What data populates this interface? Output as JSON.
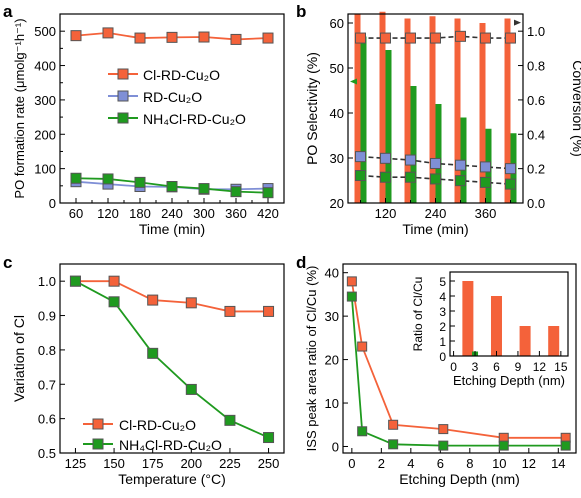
{
  "colors": {
    "orange": "#f4623a",
    "blue": "#7f8fd6",
    "green": "#1f9a1f",
    "dark": "#333333"
  },
  "chart_data": [
    {
      "panel": "a",
      "type": "line",
      "xlabel": "Time (min)",
      "ylabel": "PO formation rate (μmolg⁻¹h⁻¹)",
      "x": [
        60,
        120,
        180,
        240,
        300,
        360,
        420
      ],
      "xlim": [
        30,
        450
      ],
      "ylim": [
        0,
        550
      ],
      "xticks": [
        60,
        120,
        180,
        240,
        300,
        360,
        420
      ],
      "yticks": [
        0,
        100,
        200,
        300,
        400,
        500
      ],
      "legend": "middle-left",
      "series": [
        {
          "name": "Cl-RD-Cu₂O",
          "color": "#f4623a",
          "values": [
            487,
            495,
            480,
            482,
            483,
            476,
            480
          ]
        },
        {
          "name": "RD-Cu₂O",
          "color": "#7f8fd6",
          "values": [
            62,
            55,
            48,
            47,
            40,
            40,
            42
          ]
        },
        {
          "name": "NH₄Cl-RD-Cu₂O",
          "color": "#1f9a1f",
          "values": [
            72,
            70,
            60,
            48,
            42,
            33,
            30
          ]
        }
      ]
    },
    {
      "panel": "b",
      "type": "bar",
      "xlabel": "Time (min)",
      "ylabel_left": "PO Selectivity (%)",
      "ylabel_right": "Conversion (%)",
      "xlim": [
        30,
        450
      ],
      "ylim_left": [
        20,
        62
      ],
      "ylim_right": [
        0,
        1.1
      ],
      "xticks": [
        120,
        240,
        360
      ],
      "yticks_left": [
        20,
        30,
        40,
        50,
        60
      ],
      "yticks_right": [
        0.0,
        0.2,
        0.4,
        0.6,
        0.8,
        1.0
      ],
      "x": [
        60,
        120,
        180,
        240,
        300,
        360,
        420
      ],
      "bar_series": [
        {
          "color": "#f4623a",
          "values": [
            62,
            62.5,
            61,
            61.5,
            61,
            60,
            61
          ]
        },
        {
          "color": "#1f9a1f",
          "values": [
            57,
            54,
            46,
            42,
            39,
            36.5,
            35.5
          ]
        }
      ],
      "line_series": [
        {
          "color": "#f4623a",
          "values": [
            0.96,
            0.96,
            0.96,
            0.96,
            0.97,
            0.96,
            0.96
          ]
        },
        {
          "color": "#7f8fd6",
          "values": [
            0.27,
            0.26,
            0.25,
            0.23,
            0.22,
            0.21,
            0.2
          ]
        },
        {
          "color": "#1f9a1f",
          "values": [
            0.16,
            0.15,
            0.15,
            0.14,
            0.13,
            0.12,
            0.11
          ]
        }
      ]
    },
    {
      "panel": "c",
      "type": "line",
      "xlabel": "Temperature (°C)",
      "ylabel": "Variation of Cl",
      "x": [
        125,
        150,
        175,
        200,
        225,
        250
      ],
      "xlim": [
        115,
        260
      ],
      "ylim": [
        0.5,
        1.05
      ],
      "xticks": [
        125,
        150,
        175,
        200,
        225,
        250
      ],
      "yticks": [
        0.5,
        0.6,
        0.7,
        0.8,
        0.9,
        1.0
      ],
      "legend": "bottom-left",
      "series": [
        {
          "name": "Cl-RD-Cu₂O",
          "color": "#f4623a",
          "values": [
            1.0,
            1.0,
            0.945,
            0.937,
            0.912,
            0.912
          ]
        },
        {
          "name": "NH₄Cl-RD-Cu₂O",
          "color": "#1f9a1f",
          "values": [
            1.0,
            0.94,
            0.79,
            0.685,
            0.595,
            0.545
          ]
        }
      ]
    },
    {
      "panel": "d",
      "type": "line",
      "xlabel": "Etching Depth (nm)",
      "ylabel": "ISS peak area ratio of Cl/Cu (%)",
      "xlim": [
        -0.6,
        15.2
      ],
      "ylim": [
        -1.5,
        42
      ],
      "xticks": [
        0,
        2,
        4,
        6,
        8,
        10,
        12,
        14
      ],
      "yticks": [
        0,
        10,
        20,
        30,
        40
      ],
      "series": [
        {
          "color": "#f4623a",
          "x": [
            0,
            0.7,
            2.8,
            6.2,
            10.3,
            14.5
          ],
          "values": [
            38,
            23,
            5,
            4,
            2,
            2
          ]
        },
        {
          "color": "#1f9a1f",
          "x": [
            0,
            0.7,
            2.8,
            6.2,
            10.3,
            14.5
          ],
          "values": [
            34.5,
            3.5,
            0.5,
            0.2,
            0.2,
            0.2
          ]
        }
      ],
      "inset": {
        "type": "bar",
        "xlabel": "Etching Depth (nm)",
        "ylabel": "Ratio of Cl/Cu",
        "xlim": [
          -0.5,
          16
        ],
        "ylim": [
          0,
          5.6
        ],
        "xticks": [
          0,
          3,
          6,
          9,
          12,
          15
        ],
        "yticks": [
          0,
          1,
          2,
          3,
          4,
          5
        ],
        "x": [
          2,
          6,
          10,
          14
        ],
        "values": [
          5,
          4,
          2,
          2
        ],
        "overlay": {
          "color": "#1f9a1f",
          "x": 3,
          "value": 0.3
        }
      }
    }
  ],
  "panel_labels": [
    "a",
    "b",
    "c",
    "d"
  ],
  "legend_a": [
    "Cl-RD-Cu₂O",
    "RD-Cu₂O",
    "NH₄Cl-RD-Cu₂O"
  ],
  "legend_c": [
    "Cl-RD-Cu₂O",
    "NH₄Cl-RD-Cu₂O"
  ]
}
